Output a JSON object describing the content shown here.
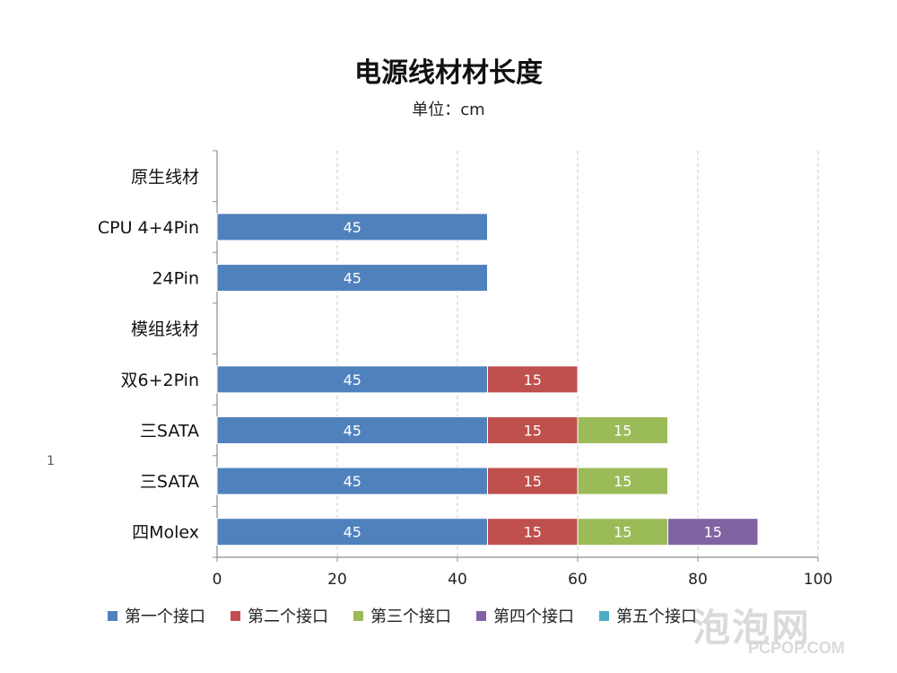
{
  "chart_data": {
    "type": "bar",
    "orientation": "horizontal",
    "stacked": true,
    "title": "电源线材材长度",
    "subtitle": "单位：cm",
    "xlim": [
      0,
      100
    ],
    "xticks": [
      0,
      20,
      40,
      60,
      80,
      100
    ],
    "grid": true,
    "legend_position": "bottom",
    "categories": [
      "原生线材",
      "CPU 4+4Pin",
      "24Pin",
      "模组线材",
      "双6+2Pin",
      "三SATA",
      "三SATA",
      "四Molex"
    ],
    "series": [
      {
        "name": "第一个接口",
        "color": "#4F81BD",
        "values": [
          null,
          45,
          45,
          null,
          45,
          45,
          45,
          45
        ]
      },
      {
        "name": "第二个接口",
        "color": "#C0504D",
        "values": [
          null,
          null,
          null,
          null,
          15,
          15,
          15,
          15
        ]
      },
      {
        "name": "第三个接口",
        "color": "#9BBB59",
        "values": [
          null,
          null,
          null,
          null,
          null,
          15,
          15,
          15
        ]
      },
      {
        "name": "第四个接口",
        "color": "#8064A2",
        "values": [
          null,
          null,
          null,
          null,
          null,
          null,
          null,
          15
        ]
      },
      {
        "name": "第五个接口",
        "color": "#4BACC6",
        "values": [
          null,
          null,
          null,
          null,
          null,
          null,
          null,
          null
        ]
      }
    ]
  },
  "stray_mark": "1",
  "watermark": {
    "logo": "泡泡网",
    "url": "PCPOP.COM"
  }
}
